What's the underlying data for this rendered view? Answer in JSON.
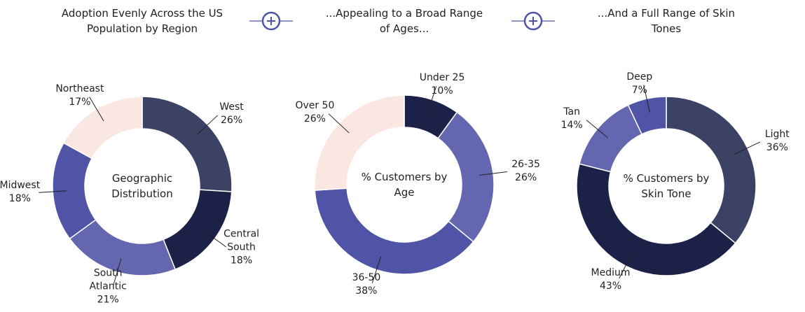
{
  "chart_data": [
    {
      "type": "pie",
      "title": "Adoption Evenly Across the US Population by Region",
      "center_label": "Geographic Distribution",
      "categories": [
        "West",
        "Central South",
        "South Atlantic",
        "Midwest",
        "Northeast"
      ],
      "values": [
        26,
        18,
        21,
        18,
        17
      ],
      "value_labels": [
        "26%",
        "18%",
        "21%",
        "18%",
        "17%"
      ],
      "colors": [
        "#3b4263",
        "#1c2147",
        "#6467b0",
        "#4f54a6",
        "#fbe7e2"
      ]
    },
    {
      "type": "pie",
      "title": "...Appealing to a Broad Range of Ages...",
      "center_label": "% Customers by Age",
      "categories": [
        "Under 25",
        "26-35",
        "36-50",
        "Over 50"
      ],
      "values": [
        10,
        26,
        38,
        26
      ],
      "value_labels": [
        "10%",
        "26%",
        "38%",
        "26%"
      ],
      "colors": [
        "#1c2147",
        "#6467b0",
        "#4f54a6",
        "#fbe7e2"
      ]
    },
    {
      "type": "pie",
      "title": "...And a Full Range of Skin Tones",
      "center_label": "% Customers by Skin Tone",
      "categories": [
        "Light",
        "Medium",
        "Tan",
        "Deep"
      ],
      "values": [
        36,
        43,
        14,
        7
      ],
      "value_labels": [
        "36%",
        "43%",
        "14%",
        "7%"
      ],
      "colors": [
        "#3b4263",
        "#1c2147",
        "#6467b0",
        "#4f54a6"
      ]
    }
  ]
}
